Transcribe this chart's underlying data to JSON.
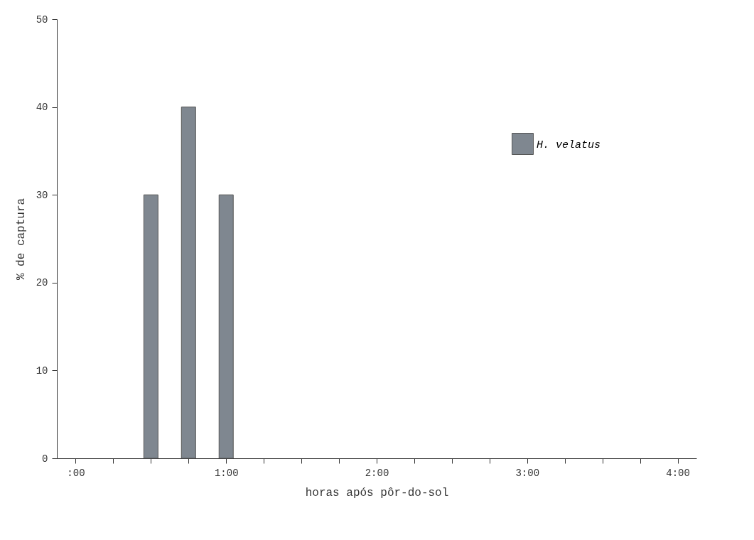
{
  "chart_data": {
    "type": "bar",
    "xlabel": "horas após pôr-do-sol",
    "ylabel": "% de captura",
    "x": [
      0.5,
      0.75,
      1
    ],
    "series": [
      {
        "name": "H. velatus",
        "color": "#7f8790",
        "values": [
          30,
          40,
          30
        ]
      }
    ],
    "xlim": [
      -0.125,
      4.125
    ],
    "xticks": [
      {
        "value": 0,
        "label": ":00"
      },
      {
        "value": 0.25,
        "label": null
      },
      {
        "value": 0.5,
        "label": null
      },
      {
        "value": 0.75,
        "label": null
      },
      {
        "value": 1,
        "label": "1:00"
      },
      {
        "value": 1.25,
        "label": null
      },
      {
        "value": 1.5,
        "label": null
      },
      {
        "value": 1.75,
        "label": null
      },
      {
        "value": 2,
        "label": "2:00"
      },
      {
        "value": 2.25,
        "label": null
      },
      {
        "value": 2.5,
        "label": null
      },
      {
        "value": 2.75,
        "label": null
      },
      {
        "value": 3,
        "label": "3:00"
      },
      {
        "value": 3.25,
        "label": null
      },
      {
        "value": 3.5,
        "label": null
      },
      {
        "value": 3.75,
        "label": null
      },
      {
        "value": 4,
        "label": "4:00"
      }
    ],
    "ylim": [
      0,
      50
    ],
    "yticks": [
      0,
      10,
      20,
      30,
      40,
      50
    ],
    "grid": false,
    "legend": "top right"
  }
}
